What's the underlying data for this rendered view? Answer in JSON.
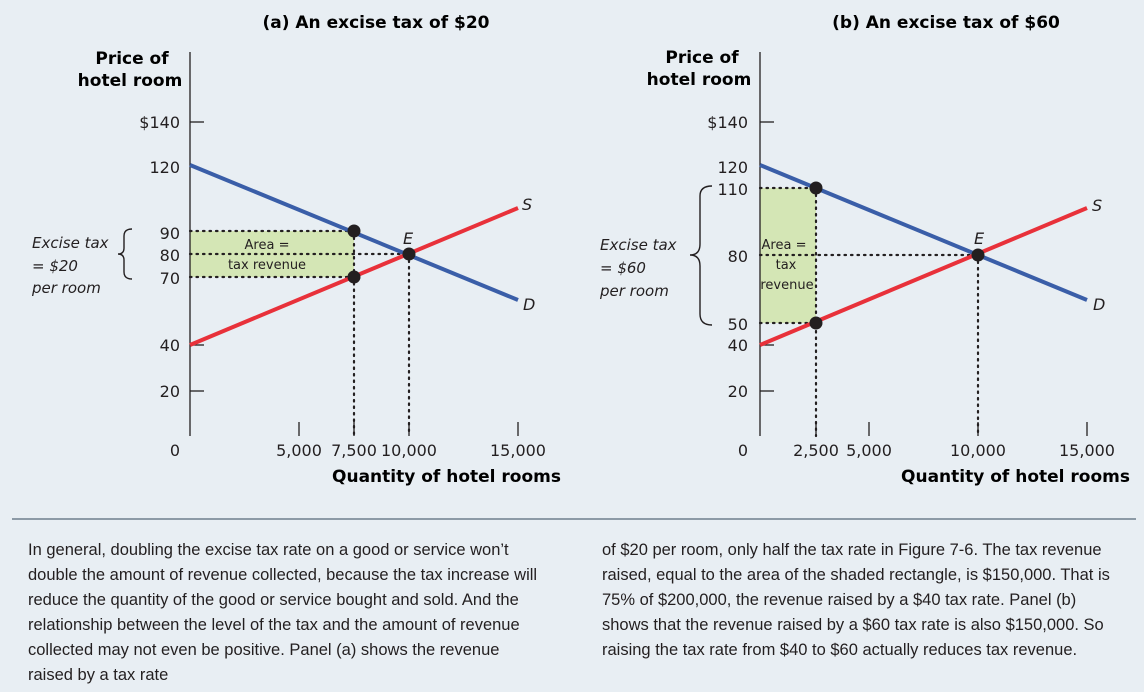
{
  "panel_a": {
    "title": "(a) An excise tax of $20",
    "ylabel_line1": "Price of",
    "ylabel_line2": "hotel room",
    "xlabel": "Quantity of hotel rooms",
    "ytick_labels": [
      "$140",
      "120",
      "90",
      "80",
      "70",
      "40",
      "20",
      "0"
    ],
    "xtick_labels": [
      "5,000",
      "7,500",
      "10,000",
      "15,000"
    ],
    "bracket_line1": "Excise tax",
    "bracket_line2": "= $20",
    "bracket_line3": "per room",
    "area_line1": "Area =",
    "area_line2": "tax revenue",
    "supply_label": "S",
    "demand_label": "D",
    "equilibrium_label": "E"
  },
  "panel_b": {
    "title": "(b) An excise tax of $60",
    "ylabel_line1": "Price of",
    "ylabel_line2": "hotel room",
    "xlabel": "Quantity of hotel rooms",
    "ytick_labels": [
      "$140",
      "120",
      "110",
      "80",
      "50",
      "40",
      "20",
      "0"
    ],
    "xtick_labels": [
      "2,500",
      "5,000",
      "10,000",
      "15,000"
    ],
    "bracket_line1": "Excise tax",
    "bracket_line2": "= $60",
    "bracket_line3": "per room",
    "area_line1": "Area =",
    "area_line2": "tax",
    "area_line3": "revenue",
    "supply_label": "S",
    "demand_label": "D",
    "equilibrium_label": "E"
  },
  "caption_left": "In general, doubling the excise tax rate on a good or service won’t double the amount of revenue collected, because the tax increase will reduce the quantity of the good or service bought and sold. And the relationship between the level of the tax and the amount of revenue collected may not even be positive. Panel (a) shows the revenue raised by a tax rate",
  "caption_right": "of $20 per room, only half the tax rate in Figure 7-6. The tax revenue raised, equal to the area of the shaded rectangle, is $150,000. That is 75% of $200,000, the revenue raised by a $40 tax rate. Panel (b) shows that the revenue raised by a $60 tax rate is also $150,000. So raising the tax rate from $40 to $60 actually reduces tax revenue.",
  "colors": {
    "supply": "#e8313a",
    "demand": "#3a5ea8",
    "area_fill": "#d4e6b5",
    "dots": "#231f20",
    "background": "#e8eef3"
  },
  "chart_data": [
    {
      "type": "line",
      "title": "(a) An excise tax of $20",
      "xlabel": "Quantity of hotel rooms",
      "ylabel": "Price of hotel room",
      "xlim": [
        0,
        15000
      ],
      "ylim": [
        0,
        140
      ],
      "yticks": [
        0,
        20,
        40,
        70,
        80,
        90,
        120,
        140
      ],
      "xticks": [
        5000,
        7500,
        10000,
        15000
      ],
      "series": [
        {
          "name": "S",
          "x": [
            0,
            15000
          ],
          "y": [
            40,
            100
          ]
        },
        {
          "name": "D",
          "x": [
            0,
            15000
          ],
          "y": [
            120,
            60
          ]
        }
      ],
      "points": [
        {
          "label": "",
          "x": 7500,
          "y": 90
        },
        {
          "label": "",
          "x": 7500,
          "y": 70
        },
        {
          "label": "E",
          "x": 10000,
          "y": 80
        }
      ],
      "shaded_area": {
        "x": [
          0,
          7500
        ],
        "y": [
          70,
          90
        ],
        "label": "Area = tax revenue"
      },
      "annotation": "Excise tax = $20 per room"
    },
    {
      "type": "line",
      "title": "(b) An excise tax of $60",
      "xlabel": "Quantity of hotel rooms",
      "ylabel": "Price of hotel room",
      "xlim": [
        0,
        15000
      ],
      "ylim": [
        0,
        140
      ],
      "yticks": [
        0,
        20,
        40,
        50,
        80,
        110,
        120,
        140
      ],
      "xticks": [
        2500,
        5000,
        10000,
        15000
      ],
      "series": [
        {
          "name": "S",
          "x": [
            0,
            15000
          ],
          "y": [
            40,
            100
          ]
        },
        {
          "name": "D",
          "x": [
            0,
            15000
          ],
          "y": [
            120,
            60
          ]
        }
      ],
      "points": [
        {
          "label": "",
          "x": 2500,
          "y": 110
        },
        {
          "label": "",
          "x": 2500,
          "y": 50
        },
        {
          "label": "E",
          "x": 10000,
          "y": 80
        }
      ],
      "shaded_area": {
        "x": [
          0,
          2500
        ],
        "y": [
          50,
          110
        ],
        "label": "Area = tax revenue"
      },
      "annotation": "Excise tax = $60 per room"
    }
  ]
}
